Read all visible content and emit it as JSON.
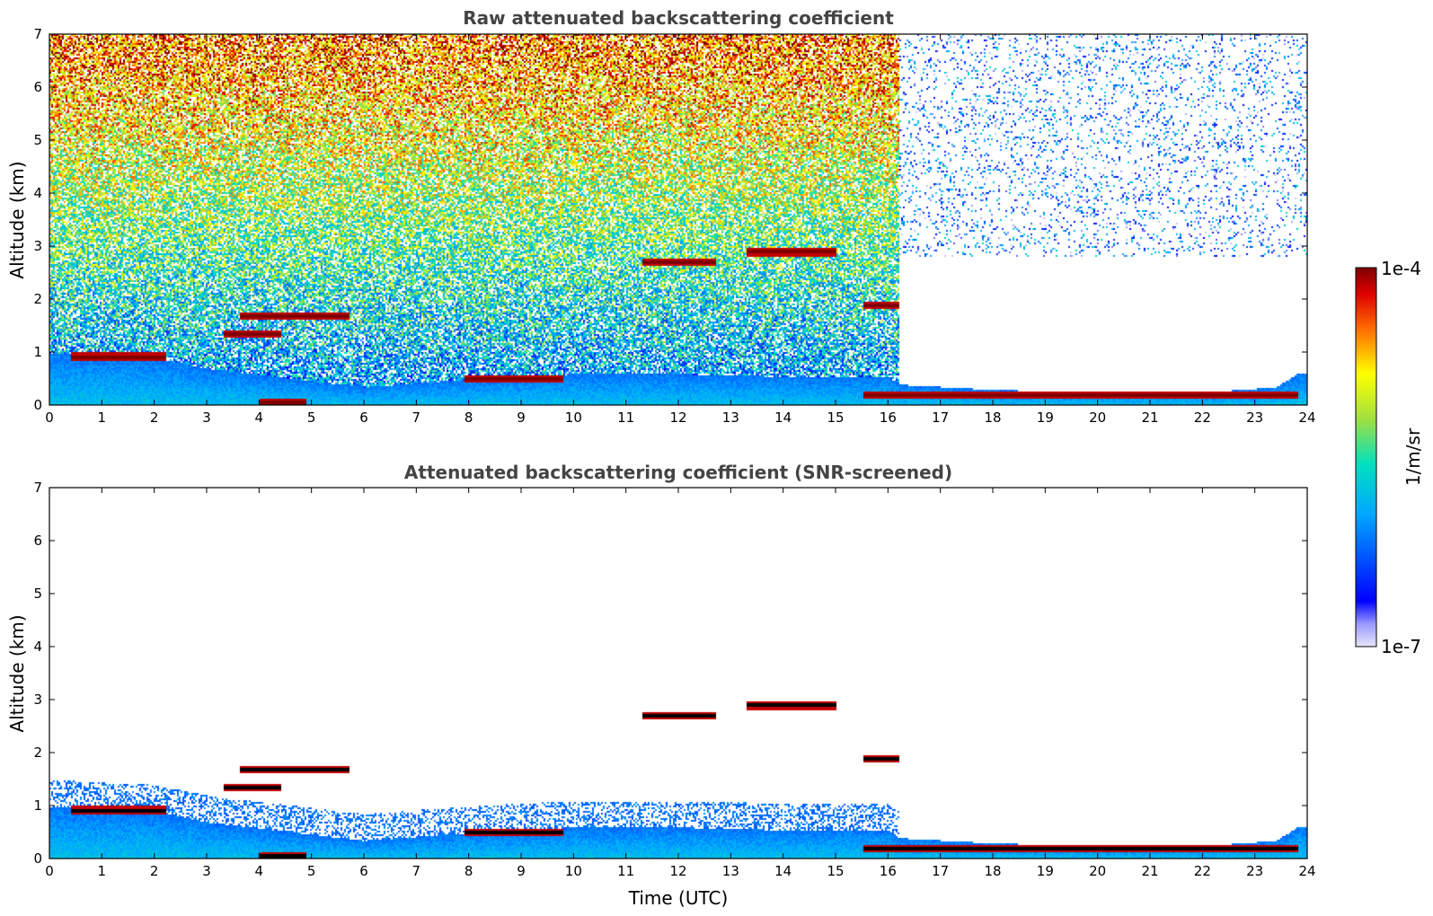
{
  "chart_data": [
    {
      "type": "heatmap",
      "title": "Raw attenuated backscattering coefficient",
      "xlabel": "",
      "ylabel": "Altitude (km)",
      "xlim": [
        0,
        24
      ],
      "ylim": [
        0,
        7
      ],
      "xticks": [
        0,
        1,
        2,
        3,
        4,
        5,
        6,
        7,
        8,
        9,
        10,
        11,
        12,
        13,
        14,
        15,
        16,
        17,
        18,
        19,
        20,
        21,
        22,
        23,
        24
      ],
      "yticks": [
        0,
        1,
        2,
        3,
        4,
        5,
        6,
        7
      ],
      "screened": false,
      "features": {
        "boundary_layer_top_km": [
          [
            0,
            1.0
          ],
          [
            2,
            0.9
          ],
          [
            3,
            0.7
          ],
          [
            6,
            0.35
          ],
          [
            8,
            0.5
          ],
          [
            10,
            0.6
          ],
          [
            12,
            0.6
          ],
          [
            14,
            0.55
          ],
          [
            16,
            0.55
          ],
          [
            16.2,
            0.4
          ],
          [
            18,
            0.3
          ],
          [
            20,
            0.25
          ],
          [
            22,
            0.25
          ],
          [
            23.4,
            0.35
          ],
          [
            23.8,
            0.6
          ]
        ],
        "cloud_layers": [
          {
            "t_start": 0.4,
            "t_end": 2.2,
            "alt_km": 0.93
          },
          {
            "t_start": 3.3,
            "t_end": 4.4,
            "alt_km": 1.35
          },
          {
            "t_start": 3.6,
            "t_end": 5.7,
            "alt_km": 1.7
          },
          {
            "t_start": 4.0,
            "t_end": 4.9,
            "alt_km": 0.05
          },
          {
            "t_start": 7.9,
            "t_end": 9.8,
            "alt_km": 0.5
          },
          {
            "t_start": 11.3,
            "t_end": 12.7,
            "alt_km": 2.7
          },
          {
            "t_start": 13.3,
            "t_end": 15.0,
            "alt_km": 2.9
          },
          {
            "t_start": 15.5,
            "t_end": 16.2,
            "alt_km": 1.9
          },
          {
            "t_start": 15.5,
            "t_end": 23.8,
            "alt_km": 0.2
          }
        ]
      }
    },
    {
      "type": "heatmap",
      "title": "Attenuated backscattering coefficient (SNR-screened)",
      "xlabel": "Time (UTC)",
      "ylabel": "Altitude (km)",
      "xlim": [
        0,
        24
      ],
      "ylim": [
        0,
        7
      ],
      "xticks": [
        0,
        1,
        2,
        3,
        4,
        5,
        6,
        7,
        8,
        9,
        10,
        11,
        12,
        13,
        14,
        15,
        16,
        17,
        18,
        19,
        20,
        21,
        22,
        23,
        24
      ],
      "yticks": [
        0,
        1,
        2,
        3,
        4,
        5,
        6,
        7
      ],
      "screened": true
    }
  ],
  "colorbar": {
    "label": "1/m/sr",
    "min_label": "1e-7",
    "max_label": "1e-4",
    "colormap": "jet",
    "colors": [
      "#e6e6fa",
      "#0000ff",
      "#00c8ff",
      "#ffff00",
      "#ff4500",
      "#7f0000"
    ]
  },
  "colors": {
    "no_signal": "#ffffff",
    "cloud_core": "#000000"
  }
}
